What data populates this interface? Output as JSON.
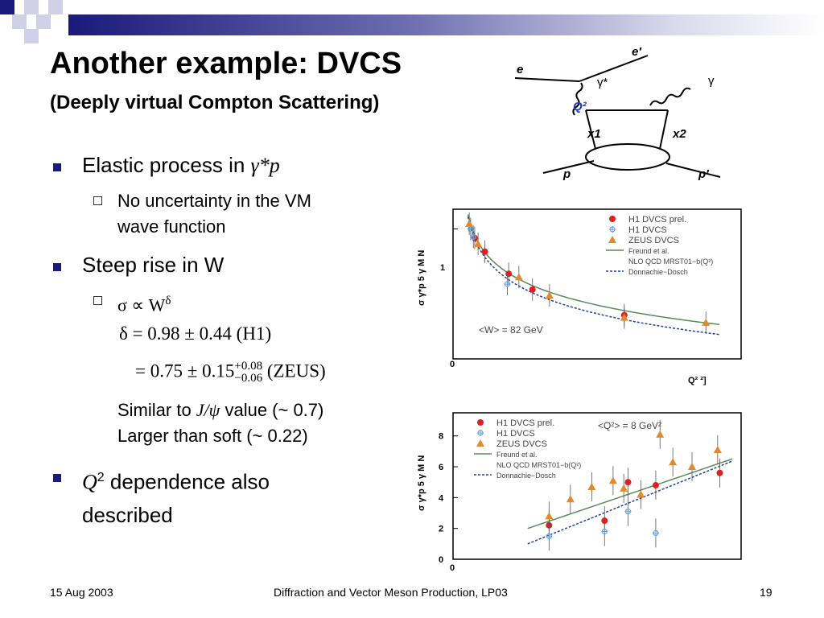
{
  "header": {
    "title": "Another example: DVCS",
    "subtitle": "(Deeply virtual Compton Scattering)"
  },
  "bullets": {
    "b1_text": "Elastic process in ",
    "b1_math": "γ*p",
    "b1_sub": [
      "No uncertainty in the VM",
      "wave function"
    ],
    "b2_text": "Steep rise in W",
    "b2_sub": "σ ∝ W",
    "b2_sup": "δ",
    "eq1": "δ = 0.98 ± 0.44 (H1)",
    "eq2_main": "= 0.75 ± 0.15",
    "eq2_up": "+0.08",
    "eq2_dn": "−0.06",
    "eq2_tail": " (ZEUS)",
    "note_line1_a": "Similar to ",
    "note_line1_math": "J/ψ",
    "note_line1_b": " value (~ 0.7)",
    "note_line2": "Larger than soft (~ 0.22)",
    "b3_math": "Q",
    "b3_sup": "2",
    "b3_text": " dependence also",
    "b3_text2": "described"
  },
  "feynman": {
    "e_in": "e",
    "e_out": "e′",
    "gamma_star": "γ*",
    "gamma": "γ",
    "q2": "Q²",
    "x1": "x1",
    "x2": "x2",
    "p_in": "p",
    "p_out": "p′"
  },
  "chart_data": [
    {
      "type": "scatter",
      "ylabel": "σ γ*p 5 γ  M N",
      "xlabel": "Q² ²]",
      "y_tick_labels": [
        "1"
      ],
      "x_tick_labels": [
        "0"
      ],
      "annotation": "<W> = 82 GeV",
      "legend": [
        "H1 DVCS prel.",
        "H1 DVCS",
        "ZEUS DVCS",
        "Freund et al.",
        "NLO QCD MRST01−b(Q²)",
        "Donnachie−Dosch"
      ],
      "series": [
        {
          "name": "H1 DVCS prel.",
          "marker": "circle",
          "color": "#e02020",
          "points": [
            [
              2,
              0.92
            ],
            [
              3.5,
              0.81
            ],
            [
              7,
              0.66
            ],
            [
              10.5,
              0.57
            ],
            [
              24,
              0.45
            ]
          ]
        },
        {
          "name": "H1 DVCS",
          "marker": "cross",
          "color": "#6aa0d8",
          "points": [
            [
              1.4,
              1.0
            ],
            [
              1.8,
              0.93
            ],
            [
              6.8,
              0.6
            ]
          ]
        },
        {
          "name": "ZEUS DVCS",
          "marker": "triangle",
          "color": "#e08a30",
          "points": [
            [
              1.2,
              1.05
            ],
            [
              2.5,
              0.87
            ],
            [
              8.5,
              0.64
            ],
            [
              13,
              0.54
            ],
            [
              24,
              0.44
            ],
            [
              36,
              0.42
            ]
          ]
        }
      ]
    },
    {
      "type": "scatter",
      "ylabel": "σ γ*p 5 γ  M N",
      "y_tick_labels": [
        "0",
        "2",
        "4",
        "6",
        "8"
      ],
      "x_tick_labels": [
        "0"
      ],
      "ylim": [
        0,
        9.5
      ],
      "annotation": "<Q²> = 8 GeV²",
      "legend": [
        "H1 DVCS prel.",
        "H1 DVCS",
        "ZEUS DVCS",
        "Freund et al.",
        "NLO QCD MRST01−b(Q²)",
        "Donnachie−Dosch"
      ],
      "series": [
        {
          "name": "H1 DVCS prel.",
          "marker": "circle",
          "color": "#e02020",
          "points": [
            [
              45,
              2.2
            ],
            [
              71,
              2.5
            ],
            [
              82,
              5.0
            ],
            [
              95,
              4.8
            ],
            [
              125,
              5.6
            ]
          ]
        },
        {
          "name": "H1 DVCS",
          "marker": "cross",
          "color": "#6aa0d8",
          "points": [
            [
              45,
              1.5
            ],
            [
              71,
              1.8
            ],
            [
              82,
              3.1
            ],
            [
              95,
              1.7
            ]
          ]
        },
        {
          "name": "ZEUS DVCS",
          "marker": "triangle",
          "color": "#e08a30",
          "points": [
            [
              45,
              2.8
            ],
            [
              55,
              3.9
            ],
            [
              65,
              4.7
            ],
            [
              75,
              5.1
            ],
            [
              80,
              4.6
            ],
            [
              88,
              4.2
            ],
            [
              97,
              8.1
            ],
            [
              103,
              6.3
            ],
            [
              112,
              6.0
            ],
            [
              124,
              7.1
            ]
          ]
        }
      ]
    }
  ],
  "footer": {
    "date": "15 Aug 2003",
    "center": "Diffraction and Vector Meson Production, LP03",
    "page": "19"
  }
}
